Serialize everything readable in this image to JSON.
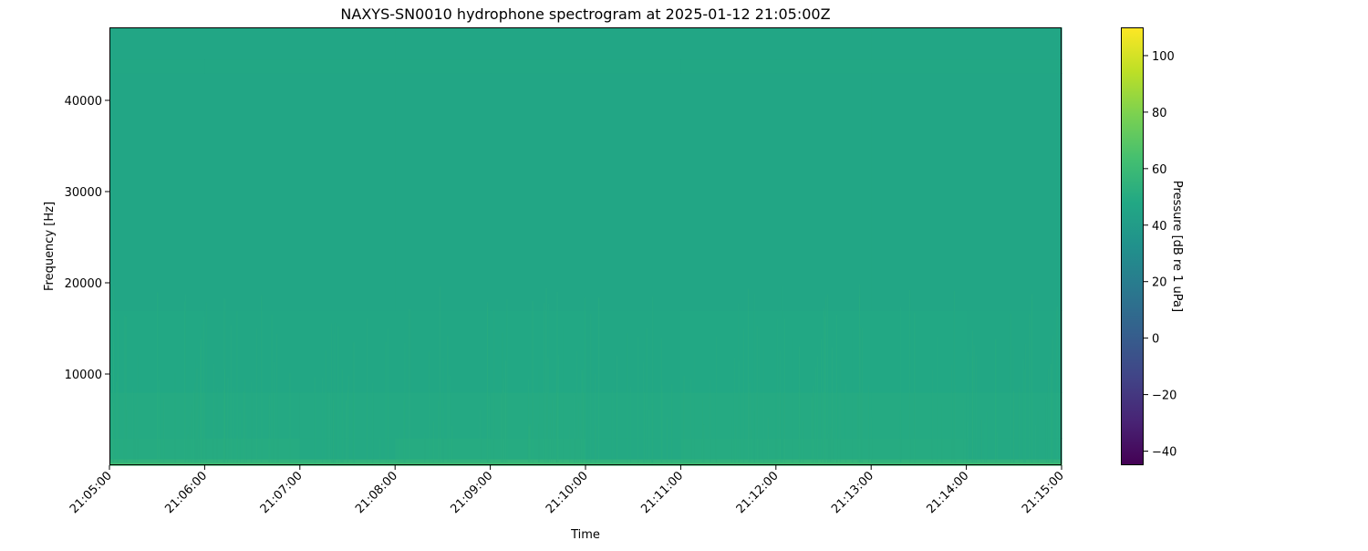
{
  "chart_data": {
    "type": "heatmap",
    "title": "NAXYS-SN0010 hydrophone spectrogram at 2025-01-12 21:05:00Z",
    "xlabel": "Time",
    "ylabel": "Frequency [Hz]",
    "x_ticks": [
      "21:05:00",
      "21:06:00",
      "21:07:00",
      "21:08:00",
      "21:09:00",
      "21:10:00",
      "21:11:00",
      "21:12:00",
      "21:13:00",
      "21:14:00",
      "21:15:00"
    ],
    "y_ticks": [
      10000,
      20000,
      30000,
      40000
    ],
    "ylim": [
      0,
      48000
    ],
    "colormap": "viridis",
    "colorbar": {
      "label": "Pressure [dB re 1 uPa]",
      "range": [
        -45,
        110
      ],
      "ticks": [
        -40,
        -20,
        0,
        20,
        40,
        60,
        80,
        100
      ]
    },
    "time_bins": [
      "21:05",
      "21:06",
      "21:07",
      "21:08",
      "21:09",
      "21:10",
      "21:11",
      "21:12",
      "21:13",
      "21:14"
    ],
    "freq_band_edges_hz": [
      0,
      300,
      700,
      3000,
      8000,
      17000,
      43000,
      44500,
      48000
    ],
    "values_db": [
      [
        62,
        62,
        61,
        62,
        62,
        61,
        62,
        62,
        61,
        62
      ],
      [
        55,
        55,
        55,
        55,
        56,
        55,
        55,
        56,
        55,
        55
      ],
      [
        50,
        50,
        49,
        50,
        50,
        49,
        50,
        50,
        50,
        49
      ],
      [
        49.5,
        49,
        49,
        49,
        49.5,
        49,
        49.5,
        49.5,
        49.5,
        49
      ],
      [
        48,
        47.5,
        47.5,
        47.5,
        48,
        47.5,
        48,
        48,
        48,
        47.5
      ],
      [
        46.5,
        46.5,
        46.5,
        46.5,
        46.5,
        46.5,
        46.5,
        46.5,
        46.5,
        46.5
      ],
      [
        47.5,
        47.5,
        47.5,
        47.5,
        47.5,
        47.5,
        47.5,
        47.5,
        47.5,
        47.5
      ],
      [
        46.5,
        46.5,
        46.5,
        46.5,
        46.5,
        46.5,
        46.5,
        46.5,
        46.5,
        46.5
      ]
    ]
  }
}
